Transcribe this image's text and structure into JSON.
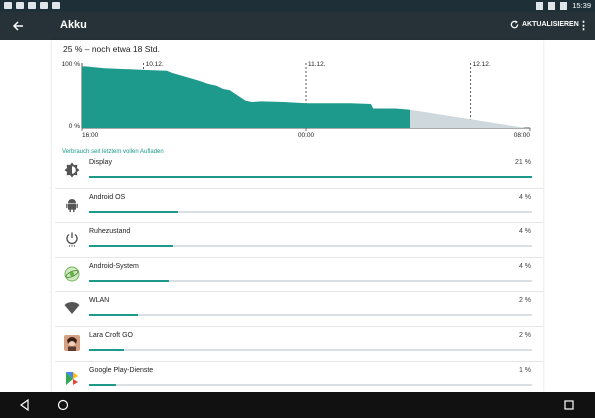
{
  "statusbar": {
    "time": "15:39"
  },
  "appbar": {
    "title": "Akku",
    "refresh_label": "AKTUALISIEREN"
  },
  "summary": "25 % – noch etwa 18 Std.",
  "chart_data": {
    "type": "area",
    "title": "",
    "y_ticks": [
      "100 %",
      "0 %"
    ],
    "x_ticks": [
      "16:00",
      "00:00",
      "08:00"
    ],
    "date_markers": [
      "10.12.",
      "11.12.",
      "12.12."
    ],
    "ylim": [
      0,
      100
    ],
    "series": [
      {
        "values_x_hours": [
          0,
          0.1,
          1,
          3,
          3.8,
          4,
          4.5,
          5,
          5.3,
          5.6,
          6,
          6.3,
          6.6,
          7.3,
          7.6,
          8,
          9,
          10,
          12,
          12.9,
          13,
          14
        ],
        "values": [
          94,
          95,
          92,
          89,
          88,
          85,
          80,
          75,
          72,
          68,
          65,
          60,
          58,
          42,
          40,
          41,
          40,
          38,
          38,
          37,
          30,
          30
        ]
      }
    ],
    "projection": {
      "from_hours": 14.65,
      "from_value": 28,
      "to_hours": 19.8,
      "to_value": 0
    }
  },
  "section_title": "Verbrauch seit letztem vollen Aufladen",
  "items": [
    {
      "name": "Display",
      "percent": "21 %",
      "fraction": 1.0,
      "icon": "brightness-icon"
    },
    {
      "name": "Android OS",
      "percent": "4 %",
      "fraction": 0.2,
      "icon": "android-icon"
    },
    {
      "name": "Ruhezustand",
      "percent": "4 %",
      "fraction": 0.19,
      "icon": "power-icon"
    },
    {
      "name": "Android-System",
      "percent": "4 %",
      "fraction": 0.18,
      "icon": "android-system-icon"
    },
    {
      "name": "WLAN",
      "percent": "2 %",
      "fraction": 0.11,
      "icon": "wifi-icon"
    },
    {
      "name": "Lara Croft GO",
      "percent": "2 %",
      "fraction": 0.08,
      "icon": "lara-croft-go-icon"
    },
    {
      "name": "Google Play-Dienste",
      "percent": "1 %",
      "fraction": 0.06,
      "icon": "google-play-services-icon"
    }
  ],
  "colors": {
    "accent": "#1d9a8c",
    "projection": "#cfd8dc",
    "appbar": "#263238"
  }
}
